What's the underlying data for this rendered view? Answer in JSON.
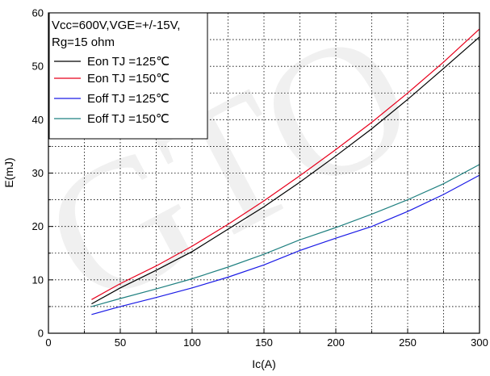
{
  "chart_data": {
    "type": "line",
    "xlabel": "Ic(A)",
    "ylabel": "E(mJ)",
    "xlim": [
      0,
      300
    ],
    "ylim": [
      0,
      60
    ],
    "xticks": [
      0,
      50,
      100,
      150,
      200,
      250,
      300
    ],
    "yticks": [
      0,
      10,
      20,
      30,
      40,
      50,
      60
    ],
    "grid": true,
    "legend_position": "top-left",
    "conditions": [
      "Vcc=600V,VGE=+/-15V,",
      "Rg=15 ohm"
    ],
    "watermark": "GTO",
    "series": [
      {
        "name": "Eon TJ =125℃",
        "color": "#000000",
        "x": [
          30,
          50,
          75,
          100,
          125,
          150,
          175,
          200,
          225,
          250,
          275,
          300
        ],
        "y": [
          5.5,
          8.5,
          11.8,
          15.3,
          19.5,
          23.7,
          28.3,
          33.2,
          38.3,
          43.8,
          49.6,
          55.5
        ]
      },
      {
        "name": "Eon TJ =150℃",
        "color": "#e8001c",
        "x": [
          30,
          50,
          75,
          100,
          125,
          150,
          175,
          200,
          225,
          250,
          275,
          300
        ],
        "y": [
          6.3,
          9.3,
          12.6,
          16.3,
          20.4,
          24.8,
          29.5,
          34.4,
          39.5,
          45.0,
          50.8,
          57.0
        ]
      },
      {
        "name": "Eoff TJ =125℃",
        "color": "#1a1ae6",
        "x": [
          30,
          50,
          75,
          100,
          125,
          150,
          175,
          200,
          225,
          250,
          275,
          300
        ],
        "y": [
          3.5,
          5.0,
          6.7,
          8.5,
          10.5,
          12.8,
          15.5,
          17.8,
          20.0,
          22.8,
          26.0,
          29.6
        ]
      },
      {
        "name": "Eoff TJ =150℃",
        "color": "#1f8080",
        "x": [
          30,
          50,
          75,
          100,
          125,
          150,
          175,
          200,
          225,
          250,
          275,
          300
        ],
        "y": [
          5.0,
          6.5,
          8.3,
          10.2,
          12.4,
          14.8,
          17.5,
          19.8,
          22.3,
          25.0,
          28.0,
          31.6
        ]
      }
    ]
  }
}
